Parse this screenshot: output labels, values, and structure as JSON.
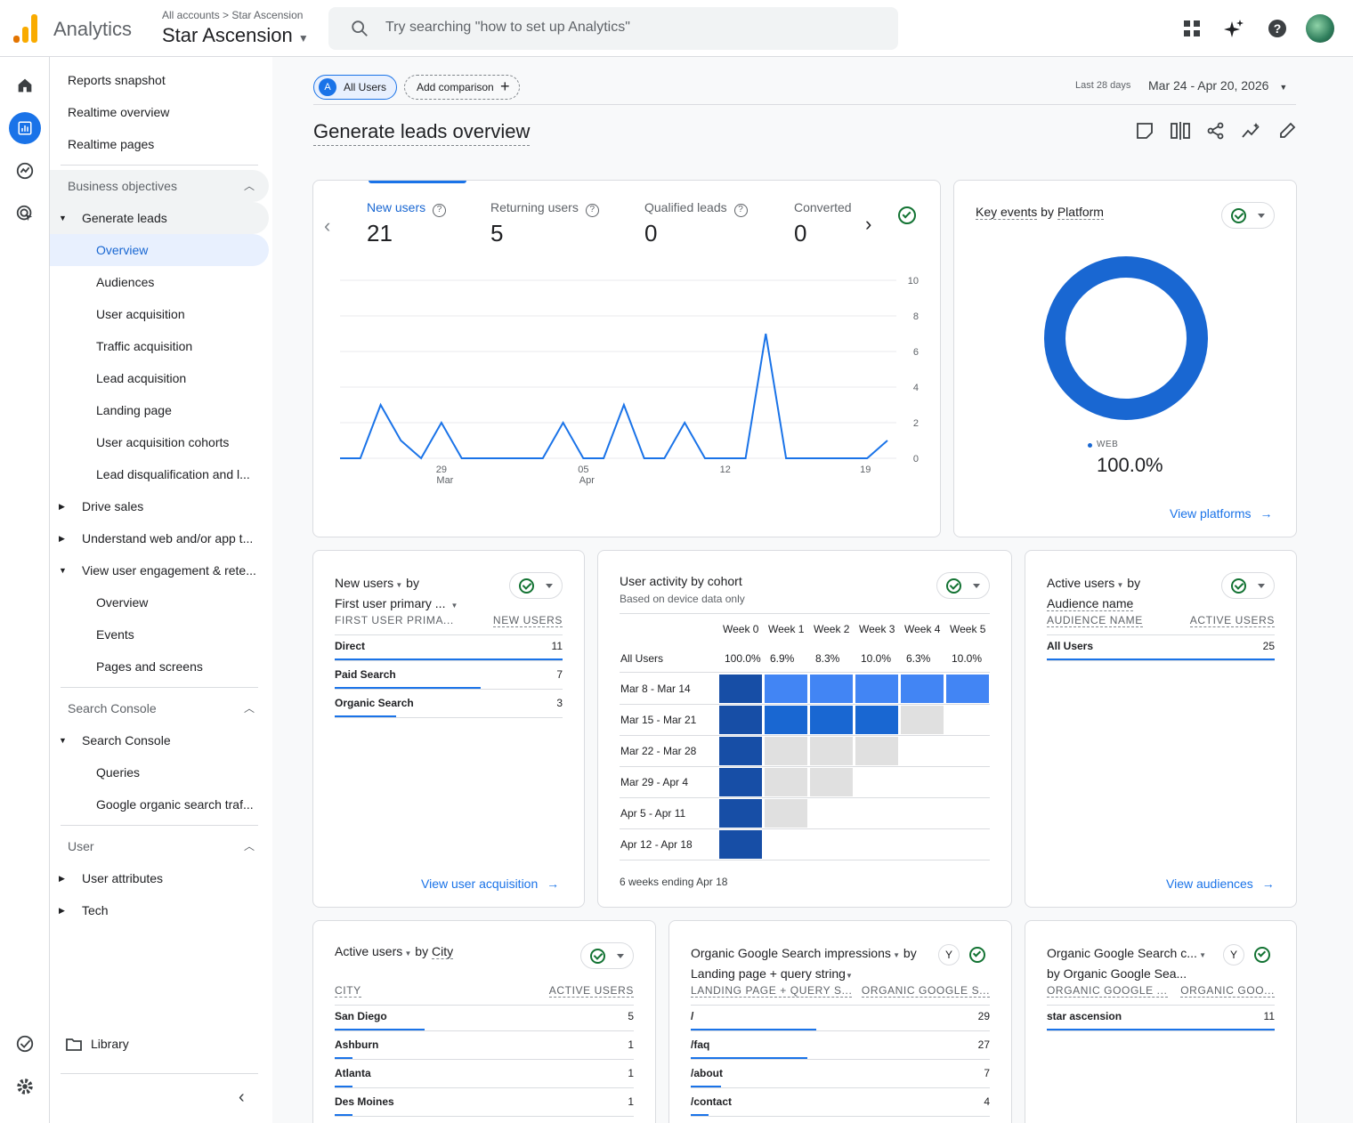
{
  "app": {
    "name": "Analytics",
    "breadcrumb": "All accounts > Star Ascension",
    "property": "Star Ascension"
  },
  "search": {
    "placeholder": "Try searching \"how to set up Analytics\""
  },
  "icons": {
    "apps": "apps-grid-icon",
    "sparkle": "sparkle-icon",
    "help": "help-icon",
    "avatar": "avatar"
  },
  "nav": {
    "items": [
      {
        "label": "Reports snapshot"
      },
      {
        "label": "Realtime overview"
      },
      {
        "label": "Realtime pages"
      },
      {
        "label": "Business objectives"
      },
      {
        "label": "Generate leads"
      },
      {
        "label": "Overview"
      },
      {
        "label": "Audiences"
      },
      {
        "label": "User acquisition"
      },
      {
        "label": "Traffic acquisition"
      },
      {
        "label": "Lead acquisition"
      },
      {
        "label": "Landing page"
      },
      {
        "label": "User acquisition cohorts"
      },
      {
        "label": "Lead disqualification and l..."
      },
      {
        "label": "Drive sales"
      },
      {
        "label": "Understand web and/or app t..."
      },
      {
        "label": "View user engagement & rete..."
      },
      {
        "label": "Overview"
      },
      {
        "label": "Events"
      },
      {
        "label": "Pages and screens"
      },
      {
        "label": "Search Console"
      },
      {
        "label": "Search Console"
      },
      {
        "label": "Queries"
      },
      {
        "label": "Google organic search traf..."
      },
      {
        "label": "User"
      },
      {
        "label": "User attributes"
      },
      {
        "label": "Tech"
      }
    ],
    "library": "Library"
  },
  "toolbar": {
    "all_users": "All Users",
    "all_users_badge": "A",
    "add_comparison": "Add comparison",
    "date_prefix": "Last 28 days",
    "date_range": "Mar 24 - Apr 20, 2026"
  },
  "page_title": "Generate leads overview",
  "overview_card": {
    "metrics": [
      {
        "label": "New users",
        "value": "21"
      },
      {
        "label": "Returning users",
        "value": "5"
      },
      {
        "label": "Qualified leads",
        "value": "0"
      },
      {
        "label": "Converted",
        "value": "0"
      }
    ],
    "y_ticks": [
      "10",
      "8",
      "6",
      "4",
      "2",
      "0"
    ],
    "x_ticks": [
      {
        "d": "29",
        "m": "Mar"
      },
      {
        "d": "05",
        "m": "Apr"
      },
      {
        "d": "12",
        "m": ""
      },
      {
        "d": "19",
        "m": ""
      }
    ]
  },
  "chart_data": {
    "type": "line",
    "title": "",
    "ylim": [
      0,
      10
    ],
    "x": [
      "Mar 24",
      "Mar 25",
      "Mar 26",
      "Mar 27",
      "Mar 28",
      "Mar 29",
      "Mar 30",
      "Mar 31",
      "Apr 1",
      "Apr 2",
      "Apr 3",
      "Apr 4",
      "Apr 5",
      "Apr 6",
      "Apr 7",
      "Apr 8",
      "Apr 9",
      "Apr 10",
      "Apr 11",
      "Apr 12",
      "Apr 13",
      "Apr 14",
      "Apr 15",
      "Apr 16",
      "Apr 17",
      "Apr 18",
      "Apr 19",
      "Apr 20"
    ],
    "series": [
      {
        "name": "New users",
        "values": [
          0,
          0,
          3,
          1,
          0,
          2,
          0,
          0,
          0,
          0,
          0,
          2,
          0,
          0,
          3,
          0,
          0,
          2,
          0,
          0,
          0,
          7,
          0,
          0,
          0,
          0,
          0,
          1
        ]
      }
    ]
  },
  "platform_card": {
    "title_a": "Key events",
    "title_b": "by",
    "title_c": "Platform",
    "legend": "WEB",
    "value": "100.0%",
    "link": "View platforms"
  },
  "new_users_card": {
    "title_a": "New users",
    "title_b": "by",
    "title_c": "First user primary ...",
    "col1": "FIRST USER PRIMA...",
    "col2": "NEW USERS",
    "rows": [
      {
        "name": "Direct",
        "value": "11",
        "share": 1
      },
      {
        "name": "Paid Search",
        "value": "7",
        "share": 0.64
      },
      {
        "name": "Organic Search",
        "value": "3",
        "share": 0.27
      }
    ],
    "link": "View user acquisition"
  },
  "cohort_card": {
    "title": "User activity by cohort",
    "subtitle": "Based on device data only",
    "weeks": [
      "Week 0",
      "Week 1",
      "Week 2",
      "Week 3",
      "Week 4",
      "Week 5"
    ],
    "all_users_label": "All Users",
    "all_users_values": [
      "100.0%",
      "6.9%",
      "8.3%",
      "10.0%",
      "6.3%",
      "10.0%"
    ],
    "cohorts": [
      "Mar 8 - Mar 14",
      "Mar 15 - Mar 21",
      "Mar 22 - Mar 28",
      "Mar 29 - Apr 4",
      "Apr 5 - Apr 11",
      "Apr 12 - Apr 18"
    ],
    "footer": "6 weeks ending Apr 18",
    "colors": {
      "dark": "#174ea6",
      "mid": "#1967d2",
      "light": "#4285f4",
      "empty": "#e0e0e0"
    }
  },
  "audience_card": {
    "title_a": "Active users",
    "title_b": "by",
    "title_c": "Audience name",
    "col1": "AUDIENCE NAME",
    "col2": "ACTIVE USERS",
    "rows": [
      {
        "name": "All Users",
        "value": "25",
        "share": 1
      }
    ],
    "link": "View audiences"
  },
  "city_card": {
    "title_a": "Active users",
    "title_b": "by",
    "title_c": "City",
    "col1": "CITY",
    "col2": "ACTIVE USERS",
    "rows": [
      {
        "name": "San Diego",
        "value": "5",
        "share": 0.3
      },
      {
        "name": "Ashburn",
        "value": "1",
        "share": 0.06
      },
      {
        "name": "Atlanta",
        "value": "1",
        "share": 0.06
      },
      {
        "name": "Des Moines",
        "value": "1",
        "share": 0.06
      }
    ]
  },
  "organic_card": {
    "title_a": "Organic Google Search impressions",
    "title_b": "by",
    "title_c": "Landing page + query string",
    "col1": "LANDING PAGE + QUERY S...",
    "col2": "ORGANIC GOOGLE S...",
    "rows": [
      {
        "name": "/",
        "value": "29",
        "share": 0.42
      },
      {
        "name": "/faq",
        "value": "27",
        "share": 0.39
      },
      {
        "name": "/about",
        "value": "7",
        "share": 0.1
      },
      {
        "name": "/contact",
        "value": "4",
        "share": 0.06
      }
    ]
  },
  "organic2_card": {
    "title_a": "Organic Google Search c...",
    "title_b": "by Organic Google Sea...",
    "col1": "ORGANIC GOOGLE ...",
    "col2": "ORGANIC GOO...",
    "rows": [
      {
        "name": "star ascension",
        "value": "11",
        "share": 1
      }
    ]
  }
}
